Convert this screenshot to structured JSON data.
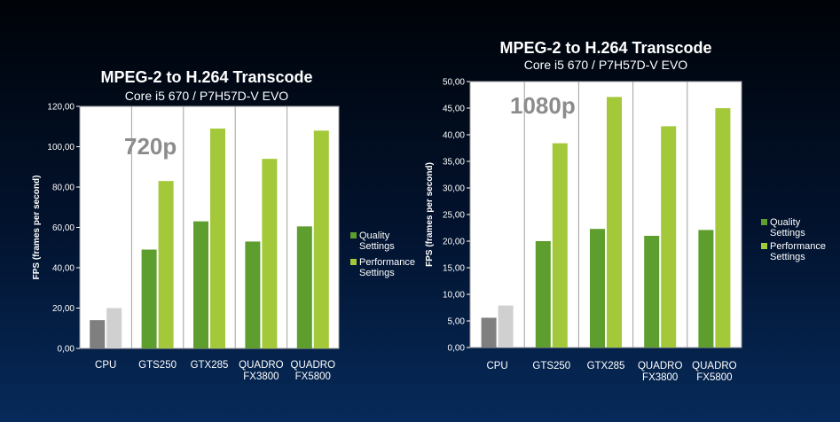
{
  "chart_data": [
    {
      "type": "bar",
      "title": "MPEG-2 to H.264 Transcode",
      "subtitle": "Core i5 670 / P7H57D-V EVO",
      "annotation": "720p",
      "ylabel": "FPS (frames per second)",
      "ylim": [
        0,
        120
      ],
      "yticks": [
        "0,00",
        "20,00",
        "40,00",
        "60,00",
        "80,00",
        "100,00",
        "120,00"
      ],
      "categories": [
        [
          "CPU"
        ],
        [
          "GTS250"
        ],
        [
          "GTX285"
        ],
        [
          "QUADRO",
          "FX3800"
        ],
        [
          "QUADRO",
          "FX5800"
        ]
      ],
      "series": [
        {
          "name": "Quality Settings",
          "legend": [
            "Quality",
            "Settings"
          ],
          "values": [
            14,
            49,
            63,
            53,
            60.5
          ]
        },
        {
          "name": "Performance Settings",
          "legend": [
            "Performance",
            "Settings"
          ],
          "values": [
            20,
            83,
            109,
            94,
            108
          ]
        }
      ],
      "cpu_colors": [
        "#7f7f7f",
        "#d0d0d0"
      ],
      "legend_position": "right",
      "grid": false
    },
    {
      "type": "bar",
      "title": "MPEG-2 to H.264 Transcode",
      "subtitle": "Core i5 670 / P7H57D-V EVO",
      "annotation": "1080p",
      "ylabel": "FPS (frames per second)",
      "ylim": [
        0,
        50
      ],
      "yticks": [
        "0,00",
        "5,00",
        "10,00",
        "15,00",
        "20,00",
        "25,00",
        "30,00",
        "35,00",
        "40,00",
        "45,00",
        "50,00"
      ],
      "categories": [
        [
          "CPU"
        ],
        [
          "GTS250"
        ],
        [
          "GTX285"
        ],
        [
          "QUADRO",
          "FX3800"
        ],
        [
          "QUADRO",
          "FX5800"
        ]
      ],
      "series": [
        {
          "name": "Quality Settings",
          "legend": [
            "Quality",
            "Settings"
          ],
          "values": [
            5.6,
            20,
            22.3,
            21,
            22.1
          ]
        },
        {
          "name": "Performance Settings",
          "legend": [
            "Performance",
            "Settings"
          ],
          "values": [
            7.9,
            38.4,
            47.1,
            41.6,
            45
          ]
        }
      ],
      "cpu_colors": [
        "#7f7f7f",
        "#d0d0d0"
      ],
      "legend_position": "right",
      "grid": false
    }
  ],
  "colors": {
    "quality": "#5e9e2e",
    "performance": "#a3c93a",
    "plot_bg": "#ffffff",
    "divider": "#a0a0a0"
  }
}
